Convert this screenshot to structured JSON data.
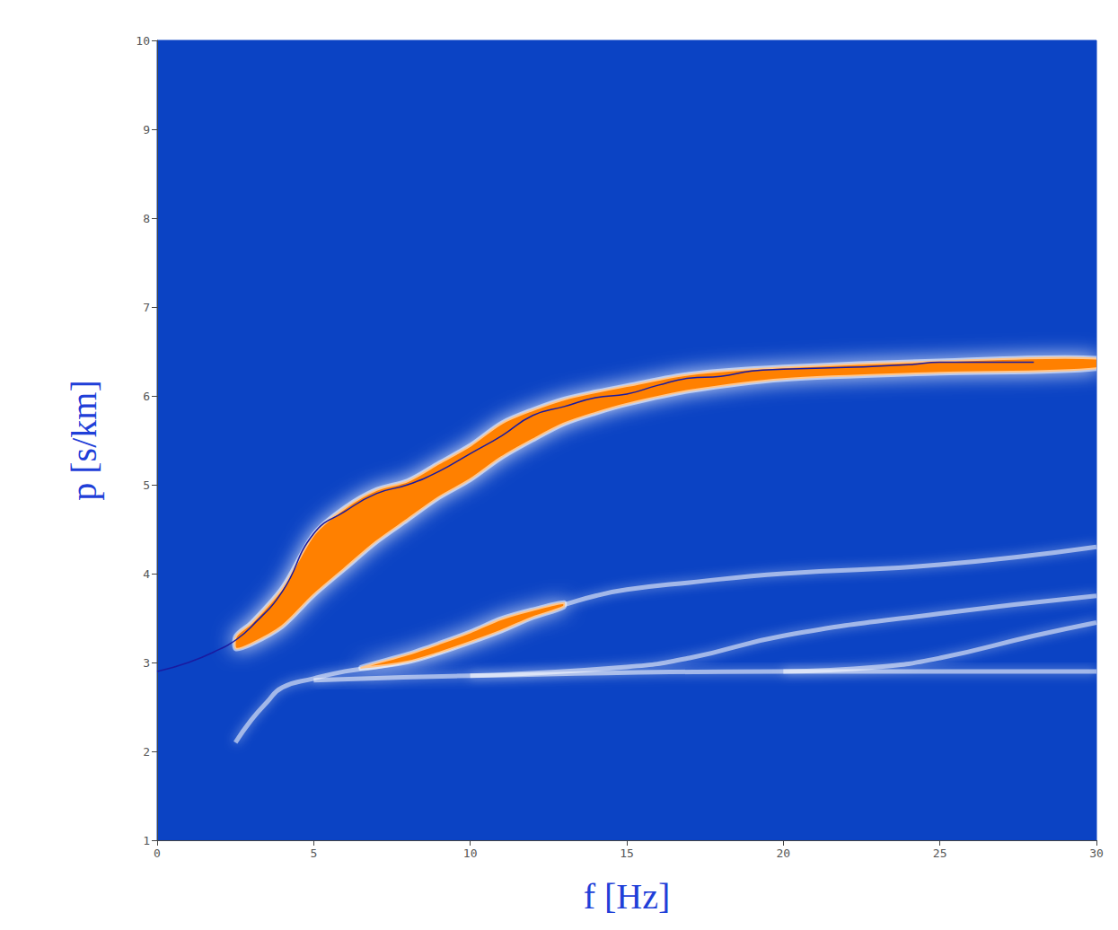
{
  "chart_data": {
    "type": "line",
    "x_label": "f [Hz]",
    "y_label": "p [s/km]",
    "xlim": [
      0,
      30
    ],
    "xticks": [
      0,
      5,
      10,
      15,
      20,
      25,
      30
    ],
    "ylim": [
      1,
      10
    ],
    "yticks": [
      1,
      2,
      3,
      4,
      5,
      6,
      7,
      8,
      9,
      10
    ],
    "grid": false,
    "series": [
      {
        "type": "band",
        "color": "#ff8000",
        "x": [
          2.5,
          3,
          4,
          5,
          6,
          7,
          8,
          9,
          10,
          11,
          12,
          13,
          14,
          15,
          17,
          20,
          25,
          30
        ],
        "upper": [
          3.3,
          3.45,
          3.85,
          4.45,
          4.75,
          4.95,
          5.05,
          5.25,
          5.45,
          5.7,
          5.85,
          5.97,
          6.05,
          6.12,
          6.25,
          6.33,
          6.4,
          6.43
        ],
        "lower": [
          3.15,
          3.2,
          3.4,
          3.75,
          4.05,
          4.35,
          4.6,
          4.85,
          5.05,
          5.3,
          5.5,
          5.68,
          5.8,
          5.9,
          6.05,
          6.18,
          6.25,
          6.3
        ]
      },
      {
        "type": "line",
        "color": "#ffffff",
        "x": [
          2.5,
          3,
          3.5,
          4,
          5,
          6,
          7,
          8,
          9,
          10,
          11,
          12,
          13,
          14,
          15,
          17,
          20,
          25,
          30
        ],
        "values": [
          2.1,
          2.35,
          2.55,
          2.72,
          2.82,
          2.9,
          2.95,
          3.02,
          3.12,
          3.25,
          3.4,
          3.55,
          3.65,
          3.75,
          3.82,
          3.9,
          4.0,
          4.1,
          4.3
        ]
      },
      {
        "type": "band",
        "color": "#ff8000",
        "x": [
          6.5,
          8,
          9,
          10,
          11,
          12,
          13
        ],
        "upper": [
          2.95,
          3.1,
          3.22,
          3.35,
          3.5,
          3.6,
          3.68
        ],
        "lower": [
          2.93,
          3.0,
          3.1,
          3.22,
          3.35,
          3.5,
          3.62
        ]
      },
      {
        "type": "line",
        "color": "#ffffff",
        "x": [
          10,
          15,
          17,
          20,
          25,
          30
        ],
        "values": [
          2.85,
          2.95,
          3.05,
          3.3,
          3.55,
          3.75
        ]
      },
      {
        "type": "line",
        "color": "#ffffff",
        "x": [
          20,
          23,
          25,
          28,
          30
        ],
        "values": [
          2.9,
          2.95,
          3.05,
          3.3,
          3.45
        ]
      },
      {
        "type": "line",
        "color": "#ffffff",
        "x": [
          5,
          10,
          20,
          30
        ],
        "values": [
          2.8,
          2.85,
          2.9,
          2.9
        ]
      },
      {
        "type": "line",
        "color": "#1a1aa0",
        "line_style": "solid",
        "x": [
          0,
          1,
          2,
          2.5,
          3,
          4,
          5,
          6,
          7,
          8,
          9,
          10,
          11,
          12,
          13,
          14,
          15,
          16,
          17,
          18,
          19,
          20,
          22,
          24,
          25,
          28
        ],
        "values": [
          2.9,
          3.0,
          3.15,
          3.25,
          3.4,
          3.8,
          4.45,
          4.7,
          4.9,
          5.0,
          5.15,
          5.35,
          5.55,
          5.78,
          5.88,
          5.98,
          6.02,
          6.12,
          6.2,
          6.22,
          6.28,
          6.3,
          6.32,
          6.35,
          6.38,
          6.38
        ]
      }
    ]
  }
}
